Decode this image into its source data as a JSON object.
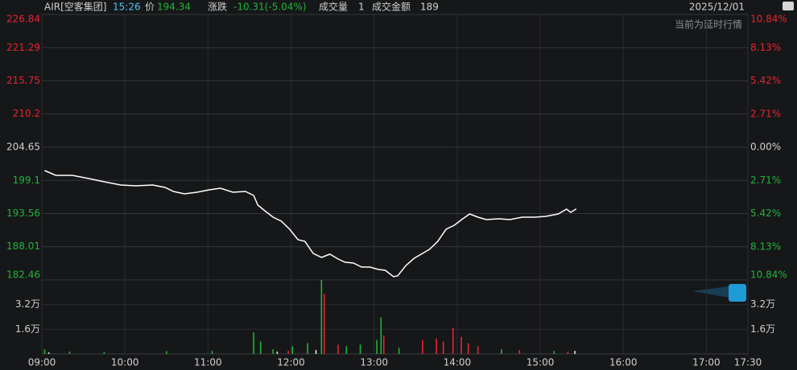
{
  "header": {
    "symbol": "AIR[空客集团]",
    "time": "15:26",
    "price_label": "价",
    "price": "194.34",
    "change_label": "涨跌",
    "change": "-10.31(-5.04%)",
    "volume_label": "成交量",
    "volume": "1",
    "amount_label": "成交金额",
    "amount": "189",
    "date": "2025/12/01",
    "notice": "当前为延时行情"
  },
  "chart_data": [
    {
      "type": "line",
      "x": [
        "09:02",
        "09:10",
        "09:22",
        "09:34",
        "09:45",
        "09:57",
        "10:08",
        "10:20",
        "10:29",
        "10:35",
        "10:43",
        "10:52",
        "11:01",
        "11:09",
        "11:18",
        "11:27",
        "11:33",
        "11:36",
        "11:41",
        "11:47",
        "11:53",
        "11:59",
        "12:05",
        "12:10",
        "12:16",
        "12:22",
        "12:28",
        "12:34",
        "12:39",
        "12:45",
        "12:51",
        "12:57",
        "13:03",
        "13:08",
        "13:14",
        "13:17",
        "13:23",
        "13:29",
        "13:35",
        "13:40",
        "13:46",
        "13:52",
        "13:58",
        "14:04",
        "14:09",
        "14:15",
        "14:21",
        "14:30",
        "14:38",
        "14:47",
        "14:56",
        "15:04",
        "15:13",
        "15:19",
        "15:22",
        "15:26"
      ],
      "series": [
        {
          "color": "#ffffff",
          "values": [
            200.75,
            199.94,
            199.94,
            199.41,
            198.87,
            198.33,
            198.2,
            198.33,
            197.93,
            197.25,
            196.85,
            197.12,
            197.52,
            197.79,
            197.12,
            197.25,
            196.58,
            194.97,
            194.03,
            192.95,
            192.28,
            190.93,
            189.19,
            188.92,
            186.9,
            186.23,
            186.76,
            185.96,
            185.42,
            185.29,
            184.61,
            184.61,
            184.21,
            184.08,
            183.0,
            183.13,
            184.88,
            186.09,
            186.9,
            187.57,
            188.92,
            190.93,
            191.61,
            192.68,
            193.49,
            192.95,
            192.55,
            192.68,
            192.55,
            192.95,
            192.95,
            193.09,
            193.49,
            194.3,
            193.76,
            194.34
          ]
        }
      ],
      "xlim": [
        "09:00",
        "17:30"
      ],
      "xticks": [
        "09:00",
        "10:00",
        "11:00",
        "12:00",
        "13:00",
        "14:00",
        "15:00",
        "16:00",
        "17:00",
        "17:30"
      ],
      "ylim": [
        182.46,
        226.84
      ],
      "yticks": [
        182.46,
        188.01,
        193.56,
        199.1,
        204.65,
        210.2,
        215.75,
        221.29,
        226.84
      ],
      "y2lim": [
        -10.84,
        10.84
      ],
      "y2ticks": [
        {
          "value": -10.84,
          "label": "10.84%"
        },
        {
          "value": -8.13,
          "label": "8.13%"
        },
        {
          "value": -5.42,
          "label": "5.42%"
        },
        {
          "value": -2.71,
          "label": "2.71%"
        },
        {
          "value": 0,
          "label": "0.00%"
        },
        {
          "value": 2.71,
          "label": "2.71%"
        },
        {
          "value": 5.42,
          "label": "5.42%"
        },
        {
          "value": 8.13,
          "label": "8.13%"
        },
        {
          "value": 10.84,
          "label": "10.84%"
        }
      ],
      "grid": true
    },
    {
      "type": "bar",
      "series": [
        {
          "color": "#1fb53a",
          "x": [
            "09:02",
            "09:20",
            "09:45",
            "10:30",
            "11:03",
            "11:33",
            "11:38",
            "11:47",
            "12:01",
            "12:12",
            "12:22",
            "12:40",
            "12:50",
            "13:02",
            "13:05",
            "13:18",
            "14:32",
            "15:10"
          ],
          "values": [
            3000,
            1500,
            1200,
            1800,
            2000,
            14000,
            8000,
            3000,
            5000,
            7000,
            48000,
            5000,
            6000,
            9000,
            23600,
            4000,
            3000,
            2000
          ]
        },
        {
          "color": "#e8242f",
          "x": [
            "11:58",
            "12:24",
            "12:34",
            "13:07",
            "13:35",
            "13:45",
            "13:50",
            "13:57",
            "14:03",
            "14:08",
            "14:15",
            "14:45",
            "15:20"
          ],
          "values": [
            2000,
            39000,
            6000,
            12000,
            9000,
            10000,
            8000,
            16800,
            11000,
            7000,
            5000,
            2500,
            1500
          ]
        },
        {
          "color": "#e6e6e6",
          "x": [
            "09:05",
            "11:50",
            "12:18",
            "15:25"
          ],
          "values": [
            1000,
            1500,
            2500,
            2000
          ]
        }
      ],
      "ylim": [
        0,
        48000
      ],
      "yticks": [
        {
          "value": 16000,
          "label": "1.6万"
        },
        {
          "value": 32000,
          "label": "3.2万"
        }
      ]
    }
  ]
}
